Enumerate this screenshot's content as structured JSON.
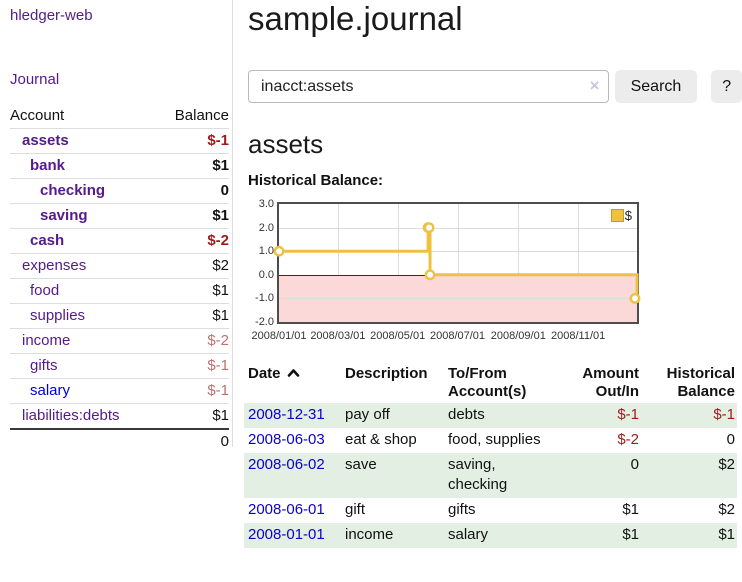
{
  "app": {
    "title": "hledger-web"
  },
  "sidebar": {
    "nav_journal": "Journal",
    "accounts_table": {
      "headers": {
        "account": "Account",
        "balance": "Balance"
      },
      "rows": [
        {
          "name": "assets",
          "depth": 1,
          "balance": "$-1",
          "bold": true,
          "balance_color": "negative"
        },
        {
          "name": "bank",
          "depth": 2,
          "balance": "$1",
          "bold": true
        },
        {
          "name": "checking",
          "depth": 3,
          "balance": "0",
          "bold": true
        },
        {
          "name": "saving",
          "depth": 3,
          "balance": "$1",
          "bold": true
        },
        {
          "name": "cash",
          "depth": 2,
          "balance": "$-2",
          "bold": true,
          "balance_color": "negative"
        },
        {
          "name": "expenses",
          "depth": 1,
          "balance": "$2"
        },
        {
          "name": "food",
          "depth": 2,
          "balance": "$1"
        },
        {
          "name": "supplies",
          "depth": 2,
          "balance": "$1"
        },
        {
          "name": "income",
          "depth": 1,
          "balance": "$-2",
          "balance_color": "negative-soft"
        },
        {
          "name": "gifts",
          "depth": 2,
          "balance": "$-1",
          "balance_color": "negative-soft"
        },
        {
          "name": "salary",
          "depth": 2,
          "balance": "$-1",
          "balance_color": "negative-soft",
          "link_color": "blue"
        },
        {
          "name": "liabilities:debts",
          "depth": 1,
          "balance": "$1"
        }
      ],
      "total": "0"
    }
  },
  "main": {
    "title": "sample.journal",
    "search": {
      "value": "inacct:assets",
      "clear_icon": "×",
      "button": "Search",
      "help_button": "?"
    },
    "account_heading": "assets",
    "chart_title": "Historical Balance:"
  },
  "chart_data": {
    "type": "line",
    "step": true,
    "title": "Historical Balance:",
    "series": [
      {
        "name": "$",
        "color": "#edc240",
        "points": [
          [
            "2008-01-01",
            1
          ],
          [
            "2008-06-01",
            2
          ],
          [
            "2008-06-02",
            2
          ],
          [
            "2008-06-03",
            0
          ],
          [
            "2008-12-31",
            -1
          ]
        ]
      }
    ],
    "ylim": [
      -2,
      3
    ],
    "yticks": [
      3.0,
      2.0,
      1.0,
      0.0,
      -1.0,
      -2.0
    ],
    "xticks": [
      "2008/01/01",
      "2008/03/01",
      "2008/05/01",
      "2008/07/01",
      "2008/09/01",
      "2008/11/01"
    ],
    "xrange": [
      "2008-01-01",
      "2008-12-31"
    ],
    "grid": true,
    "legend_position": "top-right",
    "legend": [
      {
        "label": "$",
        "color": "#edc240"
      }
    ],
    "negative_region_color": "#fbd9d9"
  },
  "register_table": {
    "headers": {
      "date": "Date",
      "sort_icon": "chevron-up",
      "description": "Description",
      "accounts": "To/From Account(s)",
      "amount": "Amount Out/In",
      "balance": "Historical Balance"
    },
    "rows": [
      {
        "date": "2008-12-31",
        "description": "pay off",
        "accounts": "debts",
        "amount": "$-1",
        "balance": "$-1"
      },
      {
        "date": "2008-06-03",
        "description": "eat & shop",
        "accounts": "food, supplies",
        "amount": "$-2",
        "balance": "0"
      },
      {
        "date": "2008-06-02",
        "description": "save",
        "accounts": "saving, checking",
        "amount": "0",
        "balance": "$2"
      },
      {
        "date": "2008-06-01",
        "description": "gift",
        "accounts": "gifts",
        "amount": "$1",
        "balance": "$2"
      },
      {
        "date": "2008-01-01",
        "description": "income",
        "accounts": "salary",
        "amount": "$1",
        "balance": "$1"
      }
    ]
  },
  "colors": {
    "link_purple": "#551a8b",
    "link_blue": "#0c00cc",
    "negative": "#9c1b1b",
    "negative_soft": "#bd7171",
    "row_stripe_green": "#e2efe2",
    "chart_line_yellow": "#edc240",
    "chart_negative_pink": "#fbd9d9",
    "chart_zero_line_red": "#9b0000"
  }
}
